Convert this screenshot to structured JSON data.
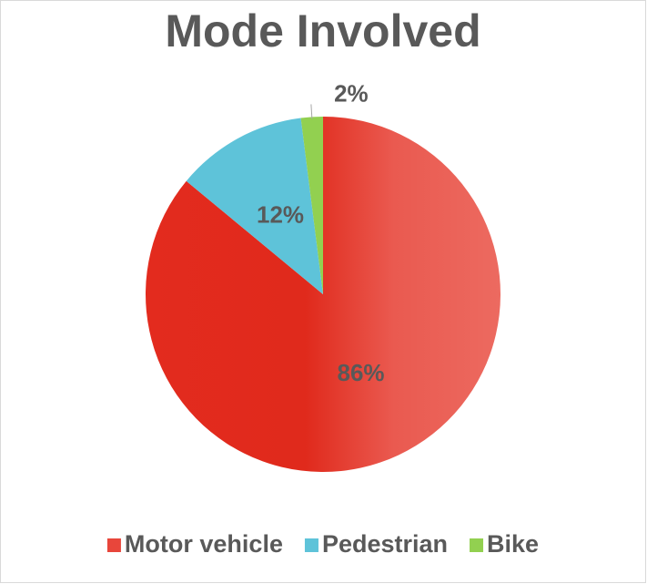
{
  "chart_data": {
    "type": "pie",
    "title": "Mode Involved",
    "categories": [
      "Motor vehicle",
      "Pedestrian",
      "Bike"
    ],
    "values": [
      86,
      12,
      2
    ],
    "value_labels": [
      "86%",
      "12%",
      "2%"
    ],
    "colors": [
      "#e8463b",
      "#5ec3d9",
      "#92d050"
    ],
    "legend": "bottom"
  }
}
